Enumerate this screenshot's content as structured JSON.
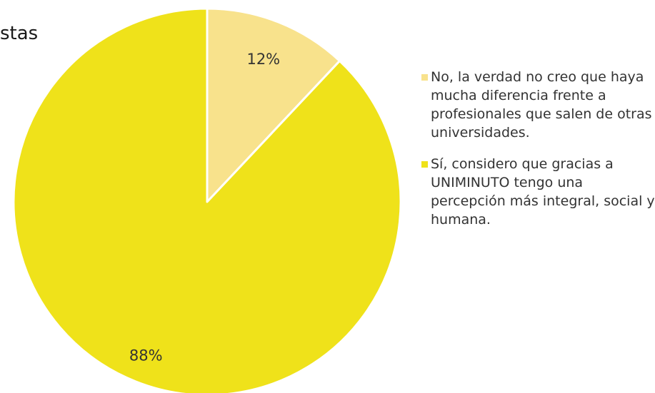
{
  "title_fragment": "stas",
  "chart_data": {
    "type": "pie",
    "slices": [
      {
        "label": "No, la verdad no creo que haya mucha diferencia frente a profesionales que salen de otras universidades.",
        "value": 12,
        "display": "12%",
        "color": "#F8E28C"
      },
      {
        "label": "Sí, considero que gracias a UNIMINUTO tengo una percepción más integral, social y humana.",
        "value": 88,
        "display": "88%",
        "color": "#EFE21A"
      }
    ],
    "start_angle_deg": 0,
    "direction": "clockwise",
    "legend_position": "right"
  }
}
